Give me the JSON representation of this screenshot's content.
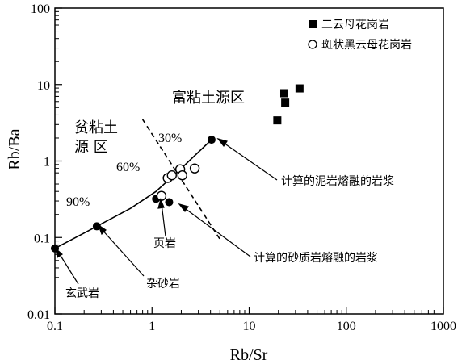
{
  "chart_data": {
    "type": "scatter",
    "xscale": "log",
    "yscale": "log",
    "xlim": [
      0.1,
      1000
    ],
    "ylim": [
      0.01,
      100
    ],
    "xlabel": "Rb/Sr",
    "ylabel": "Rb/Ba",
    "x_ticks": [
      0.1,
      1,
      10,
      100,
      1000
    ],
    "x_tick_labels": [
      "0.1",
      "1",
      "10",
      "100",
      "1000"
    ],
    "y_ticks": [
      0.01,
      0.1,
      1,
      10,
      100
    ],
    "y_tick_labels": [
      "0.01",
      "0.1",
      "1",
      "10",
      "100"
    ],
    "grid": false,
    "legend_position": "top-right",
    "series": [
      {
        "name": "二云母花岗岩",
        "marker": "filled-square",
        "points": [
          [
            19.5,
            3.4
          ],
          [
            23,
            7.7
          ],
          [
            23.5,
            5.8
          ],
          [
            33,
            8.9
          ]
        ]
      },
      {
        "name": "斑状黑云母花岗岩",
        "marker": "open-circle",
        "points": [
          [
            1.25,
            0.35
          ],
          [
            1.45,
            0.6
          ],
          [
            1.6,
            0.65
          ],
          [
            1.95,
            0.78
          ],
          [
            2.05,
            0.65
          ],
          [
            2.75,
            0.8
          ]
        ]
      }
    ],
    "reference_points": [
      {
        "x": 0.1,
        "y": 0.072
      },
      {
        "x": 0.27,
        "y": 0.14
      },
      {
        "x": 1.1,
        "y": 0.32
      },
      {
        "x": 1.5,
        "y": 0.29
      },
      {
        "x": 4.1,
        "y": 1.9
      }
    ],
    "mixing_curve": [
      [
        0.1,
        0.072
      ],
      [
        0.27,
        0.14
      ],
      [
        0.6,
        0.24
      ],
      [
        1.1,
        0.4
      ],
      [
        2.0,
        0.8
      ],
      [
        4.1,
        1.9
      ]
    ],
    "divider_line": [
      [
        0.8,
        3.5
      ],
      [
        5.0,
        0.095
      ]
    ],
    "annotations": {
      "rich_clay": "富粘土源区",
      "poor_clay_line1": "贫粘土",
      "poor_clay_line2": "源  区",
      "pct30": "30%",
      "pct60": "60%",
      "pct90": "90%",
      "pelite_melt": "计算的泥岩熔融的岩浆",
      "psammite_melt": "计算的砂质岩熔融的岩浆",
      "shale": "页岩",
      "greywacke": "杂砂岩",
      "basalt": "玄武岩"
    }
  }
}
